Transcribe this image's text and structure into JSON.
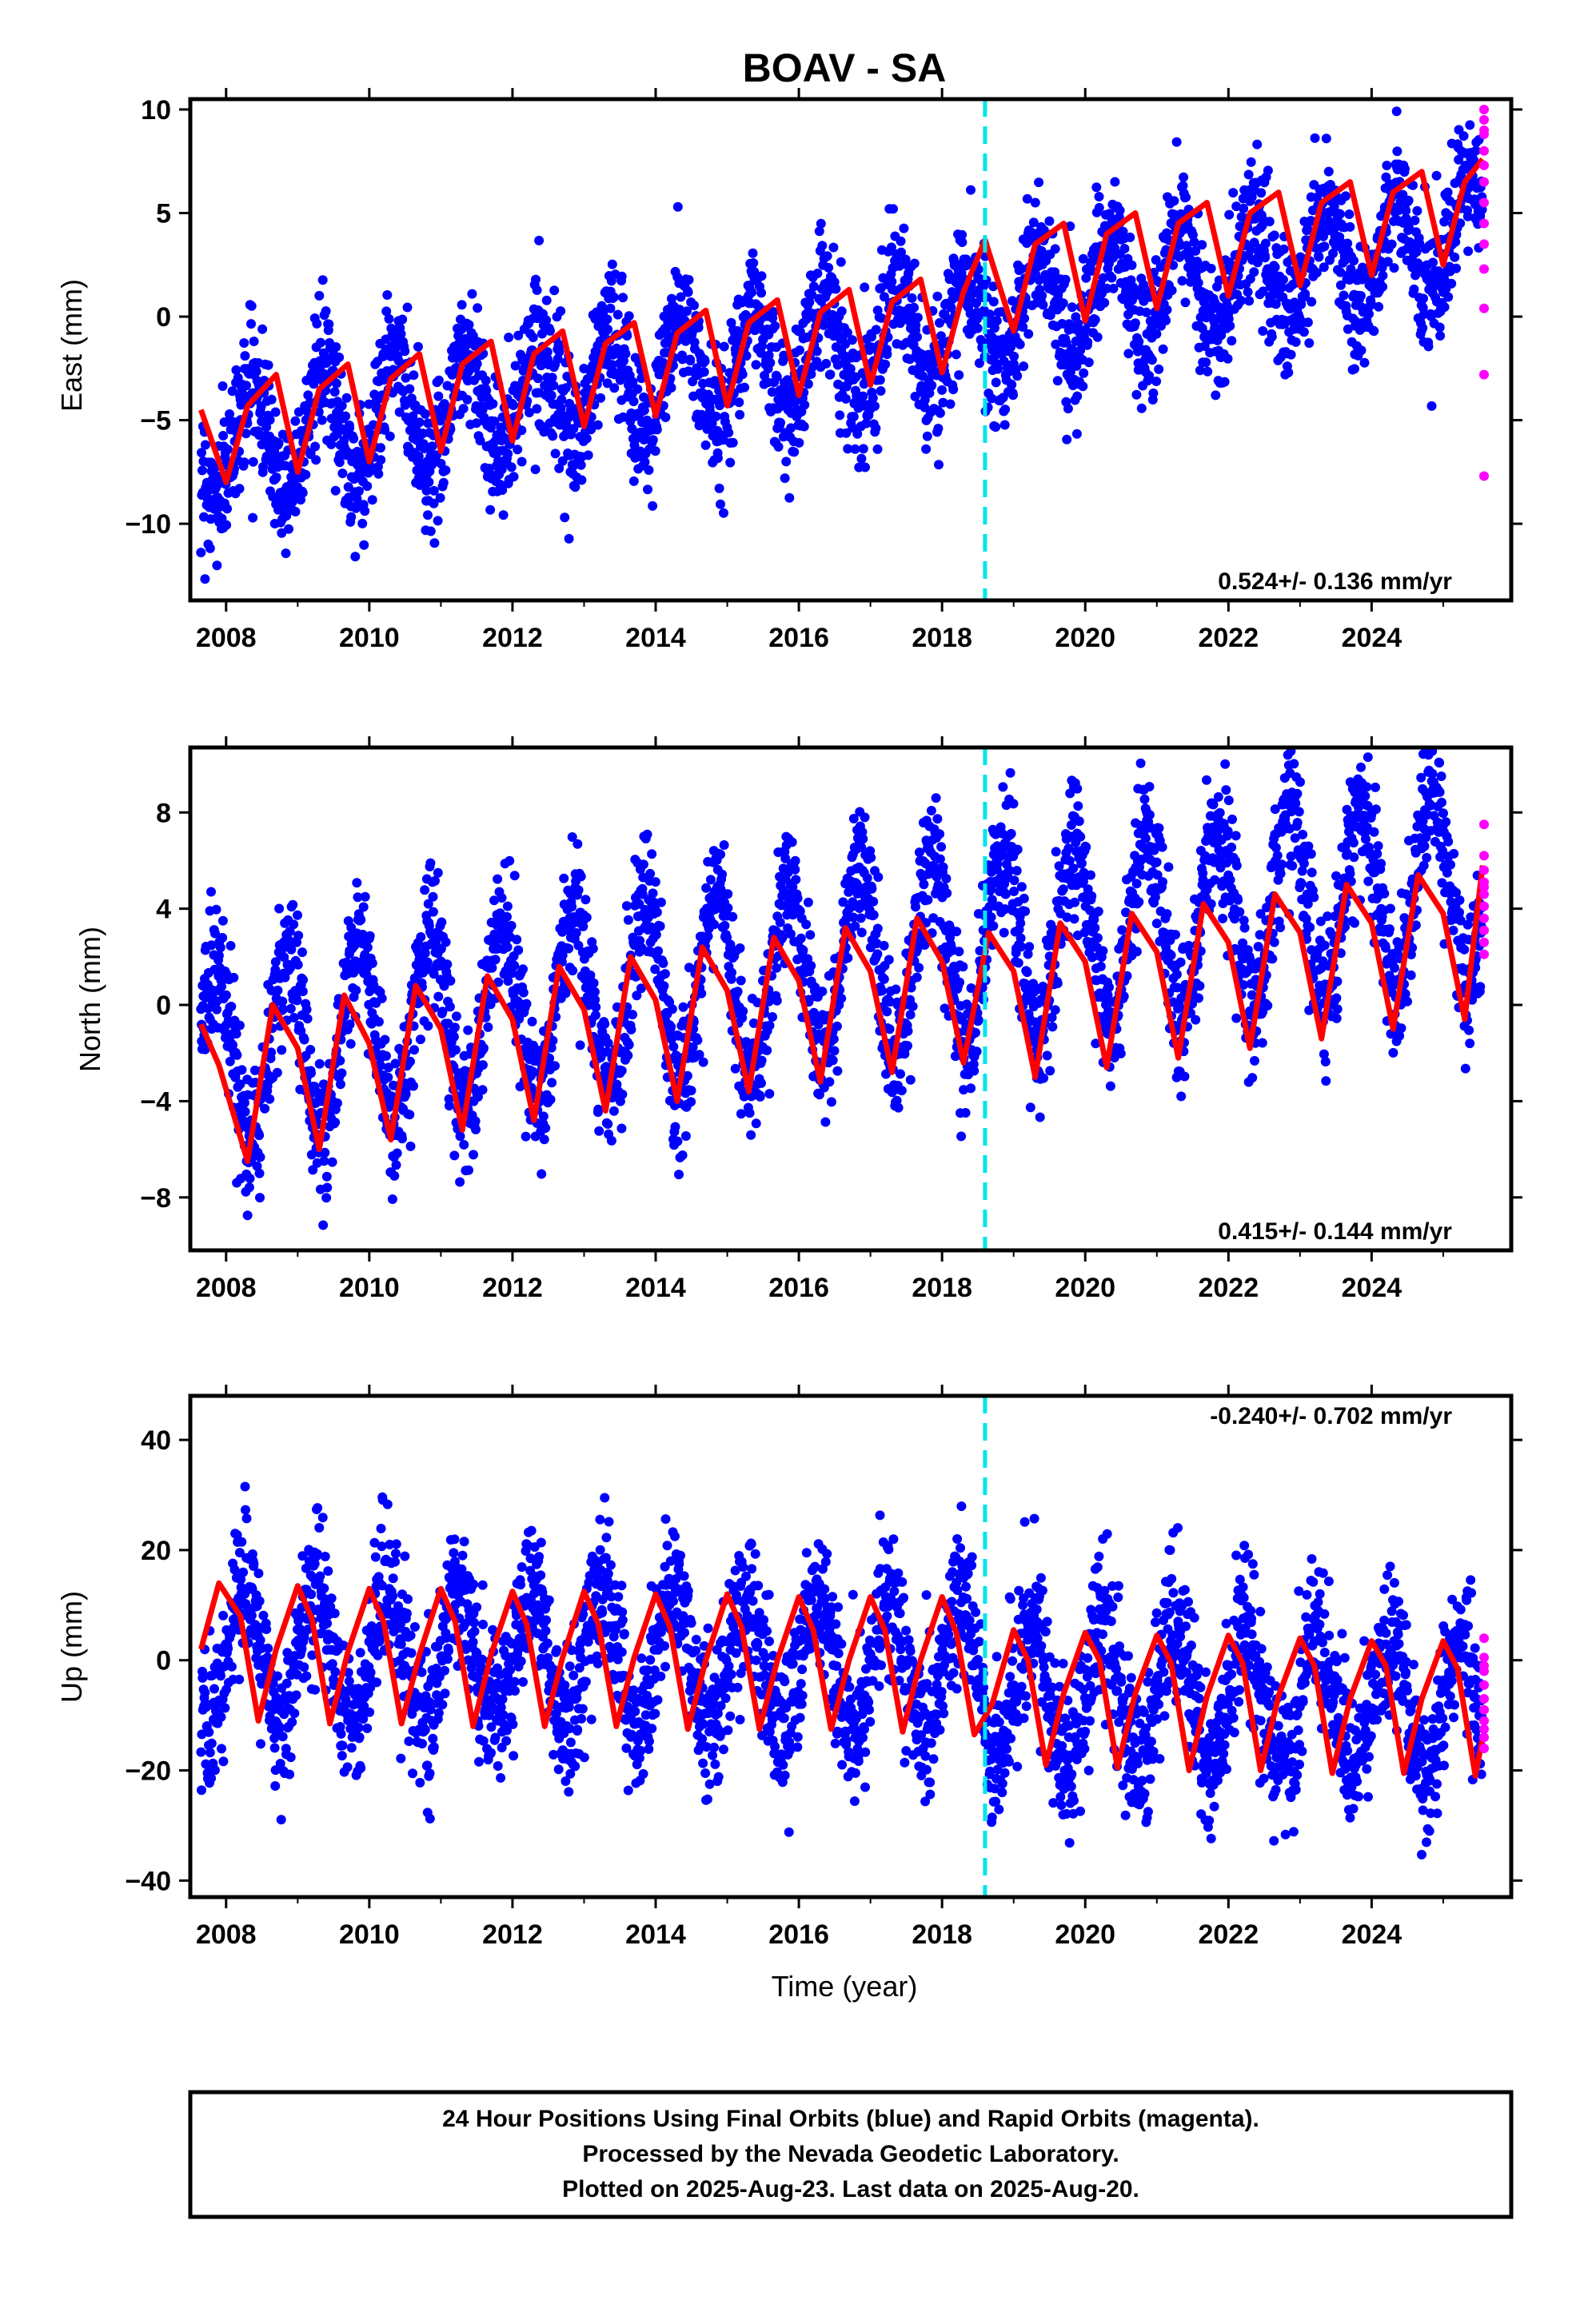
{
  "title": "BOAV - SA",
  "xlabel": "Time (year)",
  "colors": {
    "final_orbits": "#0000ff",
    "rapid_orbits": "#ff00ff",
    "fit": "#ff0000",
    "event_line": "#00e5ee",
    "frame": "#000000"
  },
  "footer": {
    "line1": "24 Hour Positions Using Final Orbits (blue) and Rapid Orbits (magenta).",
    "line2": "Processed by the Nevada Geodetic Laboratory.",
    "line3": "Plotted on 2025-Aug-23. Last data on 2025-Aug-20."
  },
  "chart_data": [
    {
      "type": "scatter",
      "panel": "east",
      "ylabel": "East (mm)",
      "xlim": [
        2007.5,
        2025.95
      ],
      "ylim": [
        -13.7,
        10.5
      ],
      "xticks": [
        2008,
        2010,
        2012,
        2014,
        2016,
        2018,
        2020,
        2022,
        2024
      ],
      "xtick_labels": [
        "2008",
        "2010",
        "2012",
        "2014",
        "2016",
        "2018",
        "2020",
        "2022",
        "2024"
      ],
      "yticks": [
        10,
        5,
        0,
        -5,
        -10
      ],
      "ytick_labels": [
        "10",
        "5",
        "0",
        "−5",
        "−10"
      ],
      "rate_label": "0.524+/- 0.136 mm/yr",
      "rate_position": "bottom-right",
      "event_line_x": 2018.6,
      "data_start": 2007.65,
      "data_end": 2025.55,
      "trend": [
        -6.2,
        0.524
      ],
      "seasonal_amplitude": 2.6,
      "seasonal_phase": 0.1,
      "scatter_spread": 1.6,
      "offset": {
        "x": 2018.6,
        "dy": 0.6
      },
      "fit_line": {
        "x": [
          2007.65,
          2008.0,
          2008.3,
          2008.7,
          2009.0,
          2009.3,
          2009.7,
          2010.0,
          2010.3,
          2010.7,
          2011.0,
          2011.3,
          2011.7,
          2012.0,
          2012.3,
          2012.7,
          2013.0,
          2013.3,
          2013.7,
          2014.0,
          2014.3,
          2014.7,
          2015.0,
          2015.3,
          2015.7,
          2016.0,
          2016.3,
          2016.7,
          2017.0,
          2017.3,
          2017.7,
          2018.0,
          2018.3,
          2018.6,
          2019.0,
          2019.3,
          2019.7,
          2020.0,
          2020.3,
          2020.7,
          2021.0,
          2021.3,
          2021.7,
          2022.0,
          2022.3,
          2022.7,
          2023.0,
          2023.3,
          2023.7,
          2024.0,
          2024.3,
          2024.7,
          2025.0,
          2025.3,
          2025.55
        ],
        "y": [
          -4.5,
          -8.0,
          -4.3,
          -2.8,
          -7.5,
          -3.5,
          -2.3,
          -7.0,
          -3.0,
          -1.8,
          -6.5,
          -2.3,
          -1.2,
          -6.0,
          -1.8,
          -0.7,
          -5.3,
          -1.3,
          -0.3,
          -4.8,
          -0.8,
          0.3,
          -4.3,
          -0.3,
          0.8,
          -3.8,
          0.2,
          1.3,
          -3.3,
          0.7,
          1.8,
          -2.7,
          1.2,
          3.7,
          -0.7,
          3.5,
          4.5,
          -0.2,
          4.0,
          5.0,
          0.4,
          4.5,
          5.5,
          1.0,
          5.0,
          6.0,
          1.5,
          5.5,
          6.5,
          2.0,
          6.0,
          7.0,
          2.5,
          6.5,
          7.6
        ]
      },
      "rapid_points": {
        "x": [
          2025.57,
          2025.57,
          2025.57,
          2025.57,
          2025.57,
          2025.57,
          2025.57,
          2025.57,
          2025.57,
          2025.57,
          2025.57,
          2025.57,
          2025.57,
          2025.57
        ],
        "y": [
          10.0,
          9.5,
          8.8,
          8.0,
          7.3,
          6.5,
          5.5,
          4.5,
          3.5,
          2.3,
          0.4,
          -2.8,
          -7.7,
          9.0
        ]
      }
    },
    {
      "type": "scatter",
      "panel": "north",
      "ylabel": "North (mm)",
      "xlim": [
        2007.5,
        2025.95
      ],
      "ylim": [
        -10.2,
        10.7
      ],
      "xticks": [
        2008,
        2010,
        2012,
        2014,
        2016,
        2018,
        2020,
        2022,
        2024
      ],
      "xtick_labels": [
        "2008",
        "2010",
        "2012",
        "2014",
        "2016",
        "2018",
        "2020",
        "2022",
        "2024"
      ],
      "yticks": [
        8,
        4,
        0,
        -4,
        -8
      ],
      "ytick_labels": [
        "8",
        "4",
        "0",
        "−4",
        "−8"
      ],
      "rate_label": "0.415+/- 0.144 mm/yr",
      "rate_position": "bottom-right",
      "event_line_x": 2018.6,
      "data_start": 2007.65,
      "data_end": 2025.55,
      "trend": [
        -2.2,
        0.415
      ],
      "seasonal_amplitude": 3.8,
      "seasonal_phase": 0.6,
      "scatter_spread": 1.4,
      "offset": {
        "x": 2018.6,
        "dy": 0.0
      },
      "fit_line": {
        "x": [
          2007.65,
          2007.9,
          2008.3,
          2008.65,
          2009.0,
          2009.3,
          2009.65,
          2010.0,
          2010.3,
          2010.65,
          2011.0,
          2011.3,
          2011.65,
          2012.0,
          2012.3,
          2012.65,
          2013.0,
          2013.3,
          2013.65,
          2014.0,
          2014.3,
          2014.65,
          2015.0,
          2015.3,
          2015.65,
          2016.0,
          2016.3,
          2016.65,
          2017.0,
          2017.3,
          2017.65,
          2018.0,
          2018.3,
          2018.65,
          2019.0,
          2019.3,
          2019.65,
          2020.0,
          2020.3,
          2020.65,
          2021.0,
          2021.3,
          2021.65,
          2022.0,
          2022.3,
          2022.65,
          2023.0,
          2023.3,
          2023.65,
          2024.0,
          2024.3,
          2024.65,
          2025.0,
          2025.3,
          2025.55
        ],
        "y": [
          -0.8,
          -2.5,
          -6.5,
          0.0,
          -1.8,
          -6.0,
          0.4,
          -1.6,
          -5.6,
          0.8,
          -1.0,
          -5.2,
          1.2,
          -0.6,
          -4.8,
          1.6,
          -0.2,
          -4.4,
          2.0,
          0.2,
          -4.0,
          2.4,
          0.6,
          -3.6,
          2.8,
          1.0,
          -3.2,
          3.2,
          1.4,
          -2.8,
          3.6,
          1.8,
          -2.4,
          3.0,
          1.4,
          -3.0,
          3.4,
          1.8,
          -2.6,
          3.8,
          2.2,
          -2.2,
          4.2,
          2.6,
          -1.8,
          4.6,
          3.0,
          -1.4,
          5.0,
          3.4,
          -1.0,
          5.4,
          3.8,
          -0.6,
          5.8
        ]
      },
      "rapid_points": {
        "x": [
          2025.57,
          2025.57,
          2025.57,
          2025.57,
          2025.57,
          2025.57,
          2025.57,
          2025.57,
          2025.57,
          2025.57,
          2025.57
        ],
        "y": [
          7.5,
          6.2,
          5.6,
          5.1,
          4.6,
          4.1,
          3.6,
          3.1,
          2.6,
          2.1,
          4.9
        ]
      }
    },
    {
      "type": "scatter",
      "panel": "up",
      "ylabel": "Up (mm)",
      "xlim": [
        2007.5,
        2025.95
      ],
      "ylim": [
        -43,
        48
      ],
      "xticks": [
        2008,
        2010,
        2012,
        2014,
        2016,
        2018,
        2020,
        2022,
        2024
      ],
      "xtick_labels": [
        "2008",
        "2010",
        "2012",
        "2014",
        "2016",
        "2018",
        "2020",
        "2022",
        "2024"
      ],
      "yticks": [
        40,
        20,
        0,
        -20,
        -40
      ],
      "ytick_labels": [
        "40",
        "20",
        "0",
        "−20",
        "−40"
      ],
      "rate_label": "-0.240+/- 0.702 mm/yr",
      "rate_position": "top-right",
      "event_line_x": 2018.6,
      "data_start": 2007.65,
      "data_end": 2025.55,
      "trend": [
        1.5,
        -0.24
      ],
      "seasonal_amplitude": 12.0,
      "seasonal_phase": 0.0,
      "scatter_spread": 6.5,
      "offset": {
        "x": 2018.6,
        "dy": -5.0
      },
      "fit_line": {
        "x": [
          2007.65,
          2007.9,
          2008.2,
          2008.45,
          2008.7,
          2009.0,
          2009.2,
          2009.45,
          2009.7,
          2010.0,
          2010.2,
          2010.45,
          2010.7,
          2011.0,
          2011.2,
          2011.45,
          2011.7,
          2012.0,
          2012.2,
          2012.45,
          2012.7,
          2013.0,
          2013.2,
          2013.45,
          2013.7,
          2014.0,
          2014.2,
          2014.45,
          2014.7,
          2015.0,
          2015.2,
          2015.45,
          2015.7,
          2016.0,
          2016.2,
          2016.45,
          2016.7,
          2017.0,
          2017.2,
          2017.45,
          2017.7,
          2018.0,
          2018.2,
          2018.45,
          2018.7,
          2019.0,
          2019.2,
          2019.45,
          2019.7,
          2020.0,
          2020.2,
          2020.45,
          2020.7,
          2021.0,
          2021.2,
          2021.45,
          2021.7,
          2022.0,
          2022.2,
          2022.45,
          2022.7,
          2023.0,
          2023.2,
          2023.45,
          2023.7,
          2024.0,
          2024.2,
          2024.45,
          2024.7,
          2025.0,
          2025.2,
          2025.45,
          2025.55
        ],
        "y": [
          2.0,
          14.0,
          8.0,
          -11.0,
          2.0,
          13.5,
          7.5,
          -11.5,
          1.5,
          13.0,
          7.0,
          -11.5,
          1.0,
          13.0,
          7.0,
          -12.0,
          1.0,
          12.5,
          6.5,
          -12.0,
          0.5,
          12.5,
          6.5,
          -12.0,
          0.5,
          12.0,
          6.0,
          -12.5,
          0.0,
          12.0,
          6.0,
          -12.5,
          0.0,
          11.5,
          5.5,
          -12.5,
          0.0,
          11.5,
          5.5,
          -13.0,
          0.0,
          11.5,
          5.0,
          -13.5,
          -8.0,
          5.5,
          0.0,
          -19.0,
          -6.0,
          5.0,
          0.0,
          -19.5,
          -6.0,
          4.5,
          -0.5,
          -20.0,
          -6.5,
          4.5,
          -0.5,
          -20.0,
          -6.5,
          4.0,
          -1.0,
          -20.5,
          -7.0,
          3.5,
          -1.0,
          -20.5,
          -7.0,
          3.5,
          -1.5,
          -21.0,
          -14.0
        ]
      },
      "rapid_points": {
        "x": [
          2025.57,
          2025.57,
          2025.57,
          2025.57,
          2025.57,
          2025.57,
          2025.57,
          2025.57,
          2025.57,
          2025.57,
          2025.57
        ],
        "y": [
          4.0,
          0.5,
          -2.0,
          -4.5,
          -7.0,
          -9.0,
          -11.0,
          -12.5,
          -14.0,
          -16.0,
          -1.0
        ]
      }
    }
  ]
}
